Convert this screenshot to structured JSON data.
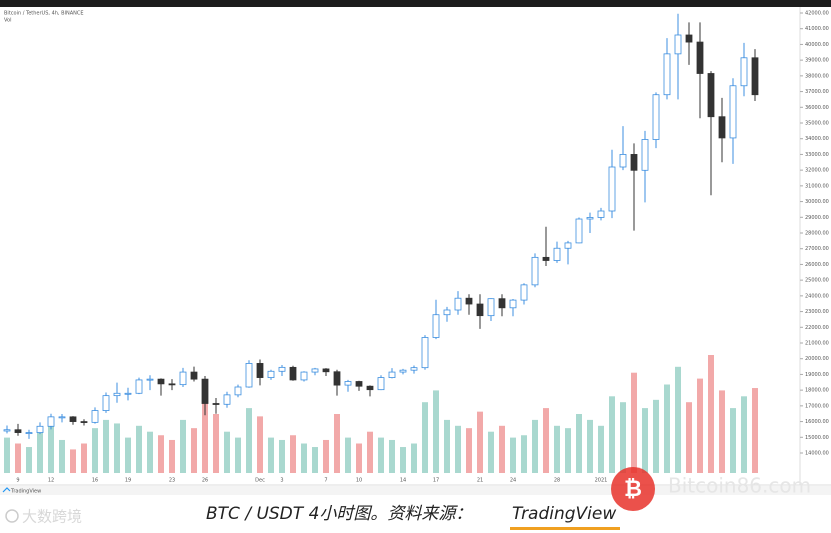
{
  "chart_data": {
    "type": "candlestick",
    "header": "Bitcoin / TetherUS, 4h, BINANCE",
    "volume_label": "Vol",
    "attribution": "TradingView",
    "caption": "BTC / USDT 4小时图。资料来源：",
    "caption_source": "TradingView",
    "watermark_left": "大数跨境",
    "watermark_right": "Bitcoin86.com",
    "up_color": "#3d8fe0",
    "down_color": "#333333",
    "vol_up_color": "#a9d8cf",
    "vol_down_color": "#f2a9a9",
    "categories": [
      null,
      "9",
      null,
      null,
      "12",
      null,
      null,
      null,
      "16",
      null,
      null,
      "19",
      null,
      null,
      null,
      "23",
      null,
      null,
      "26",
      null,
      null,
      null,
      null,
      "Dec",
      null,
      "3",
      null,
      null,
      null,
      "7",
      null,
      null,
      "10",
      null,
      null,
      null,
      "14",
      null,
      null,
      "17",
      null,
      null,
      null,
      "21",
      null,
      null,
      "24",
      null,
      null,
      null,
      "28",
      null,
      null,
      null,
      "2021",
      null,
      null,
      null,
      null,
      null,
      null,
      null,
      null,
      null,
      null,
      null,
      null,
      null,
      null
    ],
    "open": [
      15400,
      15480,
      15300,
      15300,
      15700,
      16300,
      16300,
      16000,
      15950,
      16700,
      17650,
      17800,
      17800,
      18650,
      18700,
      18400,
      18350,
      19150,
      18700,
      17150,
      17100,
      17700,
      18200,
      19700,
      18800,
      19200,
      19450,
      18650,
      19150,
      19350,
      19170,
      18320,
      18550,
      18250,
      18030,
      18800,
      19150,
      19270,
      19430,
      21350,
      22800,
      23100,
      23850,
      23480,
      22740,
      23820,
      23240,
      23730,
      24700,
      26450,
      26250,
      27030,
      27370,
      28890,
      28990,
      29400,
      32200,
      33000,
      31990,
      33950,
      36800,
      39400,
      40600,
      40150,
      38150,
      35400,
      34050,
      37370,
      39150
    ],
    "high": [
      15750,
      15850,
      15480,
      15950,
      16500,
      16480,
      16350,
      16150,
      16900,
      17850,
      18480,
      18150,
      18800,
      18950,
      18750,
      18700,
      19420,
      19500,
      18900,
      17500,
      17900,
      18350,
      19900,
      19950,
      19300,
      19600,
      19550,
      19200,
      19420,
      19400,
      19300,
      18650,
      18600,
      18300,
      18950,
      19400,
      19350,
      19570,
      21500,
      23750,
      23300,
      24300,
      24100,
      24100,
      23850,
      24100,
      23800,
      24800,
      26700,
      28400,
      27450,
      27500,
      28990,
      29300,
      29600,
      33300,
      34800,
      33700,
      34500,
      36950,
      40400,
      41950,
      41400,
      41400,
      38300,
      36600,
      37850,
      40100,
      39700
    ],
    "low": [
      15250,
      15100,
      14900,
      15200,
      15500,
      15950,
      15800,
      15750,
      15870,
      16550,
      17200,
      17350,
      17750,
      18000,
      17650,
      18000,
      18200,
      18550,
      16400,
      16500,
      16880,
      17550,
      18150,
      18300,
      18650,
      18900,
      18600,
      18550,
      18950,
      18900,
      17650,
      17900,
      17950,
      17600,
      18000,
      18750,
      19000,
      19050,
      19300,
      21250,
      22350,
      22800,
      22800,
      21900,
      22400,
      22700,
      22700,
      23450,
      24550,
      25900,
      26100,
      26000,
      27350,
      28000,
      28800,
      28950,
      32000,
      28150,
      29950,
      33400,
      36500,
      36500,
      38700,
      35300,
      30400,
      32500,
      32400,
      36700,
      36400
    ],
    "close": [
      15480,
      15300,
      15300,
      15700,
      16300,
      16300,
      16000,
      15950,
      16700,
      17650,
      17800,
      17800,
      18650,
      18700,
      18400,
      18350,
      19150,
      18700,
      17150,
      17100,
      17700,
      18200,
      19700,
      18800,
      19200,
      19450,
      18650,
      19150,
      19350,
      19170,
      18320,
      18550,
      18250,
      18030,
      18800,
      19150,
      19270,
      19430,
      21350,
      22800,
      23100,
      23850,
      23480,
      22740,
      23820,
      23240,
      23730,
      24700,
      26450,
      26250,
      27030,
      27370,
      28890,
      28990,
      29400,
      32200,
      33000,
      31990,
      33950,
      36800,
      39400,
      40600,
      40150,
      38150,
      35400,
      34050,
      37370,
      39150,
      36800
    ],
    "volume": [
      30,
      25,
      22,
      35,
      40,
      28,
      20,
      25,
      38,
      45,
      42,
      30,
      40,
      35,
      32,
      28,
      45,
      38,
      75,
      50,
      35,
      30,
      55,
      48,
      30,
      28,
      32,
      25,
      22,
      28,
      50,
      30,
      25,
      35,
      30,
      28,
      22,
      25,
      60,
      70,
      45,
      40,
      38,
      52,
      35,
      40,
      30,
      32,
      45,
      55,
      40,
      38,
      50,
      45,
      40,
      65,
      60,
      85,
      55,
      62,
      75,
      90,
      60,
      80,
      100,
      70,
      55,
      65,
      72
    ],
    "vlim": [
      0,
      100
    ],
    "ylim": [
      14000,
      42000
    ],
    "yticks": [
      {
        "value": 14000,
        "label": "14000.00"
      },
      {
        "value": 15000,
        "label": "15000.00"
      },
      {
        "value": 16000,
        "label": "16000.00"
      },
      {
        "value": 17000,
        "label": "17000.00"
      },
      {
        "value": 18000,
        "label": "18000.00"
      },
      {
        "value": 19000,
        "label": "19000.00"
      },
      {
        "value": 20000,
        "label": "20000.00"
      },
      {
        "value": 21000,
        "label": "21000.00"
      },
      {
        "value": 22000,
        "label": "22000.00"
      },
      {
        "value": 23000,
        "label": "23000.00"
      },
      {
        "value": 24000,
        "label": "24000.00"
      },
      {
        "value": 25000,
        "label": "25000.00"
      },
      {
        "value": 26000,
        "label": "26000.00"
      },
      {
        "value": 27000,
        "label": "27000.00"
      },
      {
        "value": 28000,
        "label": "28000.00"
      },
      {
        "value": 29000,
        "label": "29000.00"
      },
      {
        "value": 30000,
        "label": "30000.00"
      },
      {
        "value": 31000,
        "label": "31000.00"
      },
      {
        "value": 32000,
        "label": "32000.00"
      },
      {
        "value": 33000,
        "label": "33000.00"
      },
      {
        "value": 34000,
        "label": "34000.00"
      },
      {
        "value": 35000,
        "label": "35000.00"
      },
      {
        "value": 36000,
        "label": "36000.00"
      },
      {
        "value": 37000,
        "label": "37000.00"
      },
      {
        "value": 38000,
        "label": "38000.00"
      },
      {
        "value": 39000,
        "label": "39000.00"
      },
      {
        "value": 40000,
        "label": "40000.00"
      },
      {
        "value": 41000,
        "label": "41000.00"
      },
      {
        "value": 42000,
        "label": "42000.00"
      }
    ]
  }
}
